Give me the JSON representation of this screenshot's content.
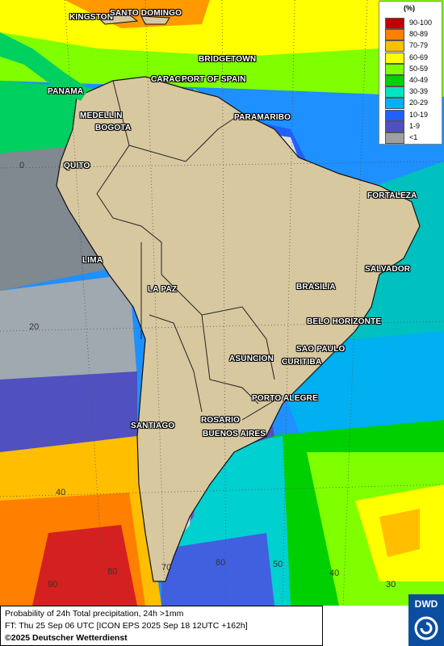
{
  "map": {
    "cities": [
      {
        "name": "KINGSTON",
        "key": "kingston"
      },
      {
        "name": "SANTO DOMINGO",
        "key": "santo-domingo"
      },
      {
        "name": "BRIDGETOWN",
        "key": "bridgetown"
      },
      {
        "name": "PANAMA",
        "key": "panama"
      },
      {
        "name": "CARACAS",
        "key": "caracas"
      },
      {
        "name": "PORT OF SPAIN",
        "key": "port-of-spain"
      },
      {
        "name": "MEDELLIN",
        "key": "medellin"
      },
      {
        "name": "BOGOTA",
        "key": "bogota"
      },
      {
        "name": "PARAMARIBO",
        "key": "paramaribo"
      },
      {
        "name": "QUITO",
        "key": "quito"
      },
      {
        "name": "FORTALEZA",
        "key": "fortaleza"
      },
      {
        "name": "LIMA",
        "key": "lima"
      },
      {
        "name": "SALVADOR",
        "key": "salvador"
      },
      {
        "name": "LA PAZ",
        "key": "la-paz"
      },
      {
        "name": "BRASILIA",
        "key": "brasilia"
      },
      {
        "name": "BELO HORIZONTE",
        "key": "belo-horizonte"
      },
      {
        "name": "SAO PAULO",
        "key": "sao-paulo"
      },
      {
        "name": "ASUNCION",
        "key": "asuncion"
      },
      {
        "name": "CURITIBA",
        "key": "curitiba"
      },
      {
        "name": "PORTO ALEGRE",
        "key": "porto-alegre"
      },
      {
        "name": "ROSARIO",
        "key": "rosario"
      },
      {
        "name": "SANTIAGO",
        "key": "santiago"
      },
      {
        "name": "BUENOS AIRES",
        "key": "buenos-aires"
      }
    ],
    "grid_labels": {
      "lat_0": "0",
      "lat_20": "20",
      "lat_40": "40",
      "lon_90": "90",
      "lon_80": "80",
      "lon_70": "70",
      "lon_60": "60",
      "lon_50": "50",
      "lon_40": "40",
      "lon_30": "30"
    }
  },
  "legend": {
    "unit": "(%)",
    "items": [
      {
        "label": "90-100",
        "color": "#c00000"
      },
      {
        "label": "80-89",
        "color": "#ff7f00"
      },
      {
        "label": "70-79",
        "color": "#ffbf00"
      },
      {
        "label": "60-69",
        "color": "#ffff00"
      },
      {
        "label": "50-59",
        "color": "#7fff00"
      },
      {
        "label": "40-49",
        "color": "#00d000"
      },
      {
        "label": "30-39",
        "color": "#00e5c0"
      },
      {
        "label": "20-29",
        "color": "#00b0f0"
      },
      {
        "label": "10-19",
        "color": "#2060ff"
      },
      {
        "label": "1-9",
        "color": "#5050c0"
      },
      {
        "label": "<1",
        "color": "#a0a0a0"
      }
    ]
  },
  "footer": {
    "line1": "Probability of 24h Total precipitation, 24h >1mm",
    "line2": "FT: Thu 25 Sep 06 UTC [ICON EPS 2025 Sep 18 12UTC +162h]",
    "line3": "©2025 Deutscher Wetterdienst",
    "logo_text": "DWD"
  }
}
